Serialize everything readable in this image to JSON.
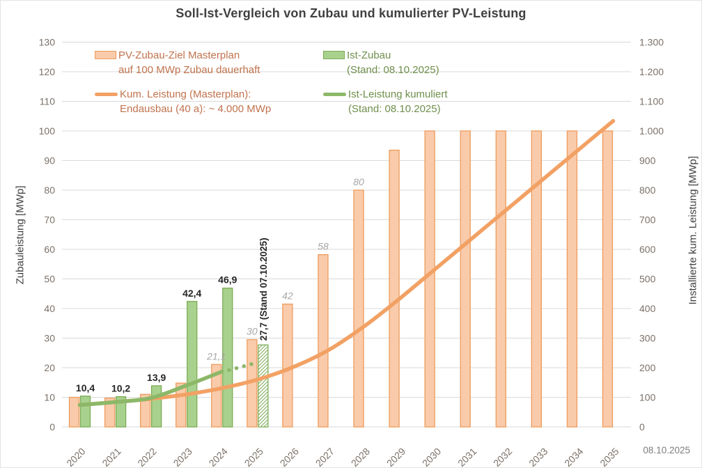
{
  "title": "Soll-Ist-Vergleich von Zubau und kumulierter PV-Leistung",
  "footer_date": "08.10.2025",
  "legend": {
    "items": [
      {
        "id": "masterplan-bar",
        "swatch": "bar",
        "color_role": "orange",
        "lines": [
          "PV-Zubau-Ziel Masterplan",
          "auf 100 MWp Zubau dauerhaft"
        ]
      },
      {
        "id": "ist-bar",
        "swatch": "bar",
        "color_role": "green",
        "lines": [
          "Ist-Zubau",
          "(Stand: 08.10.2025)"
        ]
      },
      {
        "id": "masterplan-line",
        "swatch": "line",
        "color_role": "orange",
        "lines": [
          "Kum. Leistung (Masterplan):",
          "Endausbau (40 a): ~ 4.000 MWp"
        ]
      },
      {
        "id": "ist-line",
        "swatch": "line",
        "color_role": "green",
        "lines": [
          "Ist-Leistung kumuliert",
          "(Stand: 08.10.2025)"
        ]
      }
    ]
  },
  "chart_data": {
    "type": "combo-bar-line",
    "categories": [
      "2020",
      "2021",
      "2022",
      "2023",
      "2024",
      "2025",
      "2026",
      "2027",
      "2028",
      "2029",
      "2030",
      "2031",
      "2032",
      "2033",
      "2034",
      "2035"
    ],
    "left_axis": {
      "title": "Zubauleistung [MWp]",
      "min": 0,
      "max": 130,
      "step": 10
    },
    "right_axis": {
      "title": "Installierte kum. Leistung [MWp]",
      "min": 0,
      "max": 1300,
      "step": 100
    },
    "grid": "horizontal-only",
    "legend_position": "top-left-inside",
    "series": [
      {
        "id": "masterplan_zubau",
        "name": "PV-Zubau-Ziel Masterplan auf 100 MWp Zubau dauerhaft",
        "type": "bar",
        "axis": "left",
        "values": [
          10,
          9.7,
          11,
          14.8,
          21.1,
          29.5,
          41.5,
          58.2,
          80,
          93.5,
          100,
          100,
          100,
          100,
          100,
          100
        ],
        "value_labels": [
          null,
          null,
          null,
          null,
          "21,1",
          "30",
          "42",
          "58",
          "80",
          null,
          null,
          null,
          null,
          null,
          null,
          null
        ],
        "label_style": "italic-gray"
      },
      {
        "id": "ist_zubau",
        "name": "Ist-Zubau (Stand: 08.10.2025)",
        "type": "bar",
        "axis": "left",
        "values": [
          10.4,
          10.2,
          13.9,
          42.4,
          46.9,
          27.7,
          null,
          null,
          null,
          null,
          null,
          null,
          null,
          null,
          null,
          null
        ],
        "value_labels": [
          "10,4",
          "10,2",
          "13,9",
          "42,4",
          "46,9",
          null,
          null,
          null,
          null,
          null,
          null,
          null,
          null,
          null,
          null,
          null
        ],
        "label_style": "bold-dark",
        "hatched_index": 5,
        "hatched_label": "27,7 (Stand 07.10.2025)"
      },
      {
        "id": "masterplan_kum",
        "name": "Kum. Leistung (Masterplan): Endausbau (40 a): ~ 4.000 MWp",
        "type": "line",
        "axis": "right",
        "smooth": true,
        "values": [
          74,
          84,
          95,
          110,
          131,
          160,
          202,
          260,
          340,
          434,
          534,
          634,
          734,
          834,
          934,
          1034
        ]
      },
      {
        "id": "ist_kum",
        "name": "Ist-Leistung kumuliert (Stand: 08.10.2025)",
        "type": "line",
        "axis": "right",
        "smooth": true,
        "values": [
          74,
          84,
          98,
          140,
          187,
          215,
          null,
          null,
          null,
          null,
          null,
          null,
          null,
          null,
          null,
          null
        ],
        "dotted_from_index": 4
      }
    ]
  },
  "colors": {
    "masterplan_bar_fill": "#F9CBAB",
    "masterplan_bar_border": "#ED9B5C",
    "ist_bar_fill": "#A9D18E",
    "ist_bar_border": "#7CAC55",
    "masterplan_line": "#F2A164",
    "ist_line": "#8CB868",
    "grid": "#D9D9D9",
    "title_text": "#404040",
    "axis_text": "#7B7168",
    "legend_orange_text": "#C0734E",
    "legend_green_text": "#6F8F4C",
    "label_dark": "#262626",
    "label_gray_italic": "#A6A6A6",
    "hatch_bg": "#FFFFFF"
  }
}
